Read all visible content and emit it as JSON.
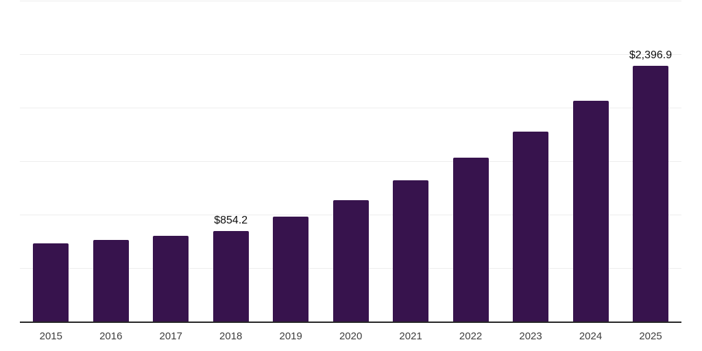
{
  "chart_data": {
    "type": "bar",
    "title": "",
    "xlabel": "",
    "ylabel": "",
    "categories": [
      "2015",
      "2016",
      "2017",
      "2018",
      "2019",
      "2020",
      "2021",
      "2022",
      "2023",
      "2024",
      "2025"
    ],
    "values": [
      735,
      772,
      805,
      854.2,
      985,
      1140,
      1325,
      1540,
      1780,
      2070,
      2396.9
    ],
    "value_labels": [
      "",
      "",
      "",
      "$854.2",
      "",
      "",
      "",
      "",
      "",
      "",
      "$2,396.9"
    ],
    "ylim": [
      0,
      3000
    ],
    "gridline_step": 500,
    "grid": "horizontal",
    "legend_position": "none",
    "y_tick_labels_visible": false,
    "colors": {
      "bar": "#37134d",
      "gridline": "#ededed",
      "axis_line": "#262626",
      "tick_label": "#3c3c3c",
      "value_label": "#0d0d0d",
      "background": "#ffffff"
    }
  }
}
